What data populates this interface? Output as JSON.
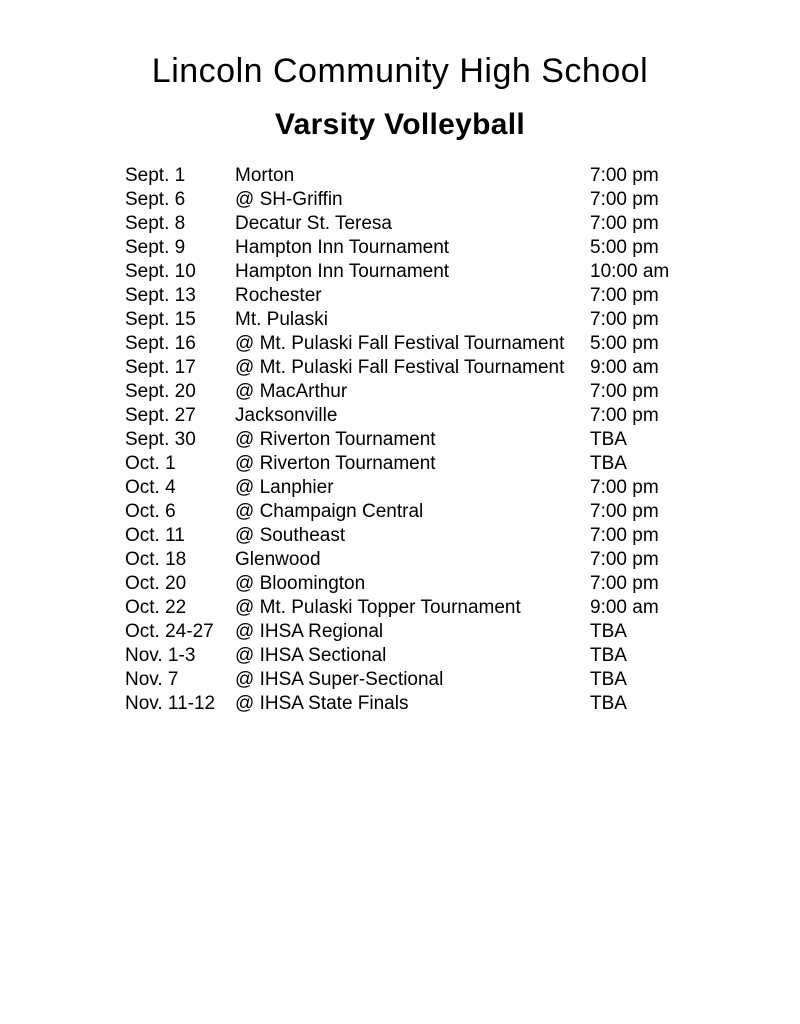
{
  "document": {
    "title": "Lincoln Community High School",
    "subtitle": "Varsity Volleyball"
  },
  "colors": {
    "text": "#000000",
    "background": "#ffffff"
  },
  "schedule": {
    "rows": [
      {
        "date": "Sept. 1",
        "opponent": "Morton",
        "time": "7:00 pm"
      },
      {
        "date": "Sept. 6",
        "opponent": "@ SH-Griffin",
        "time": "7:00 pm"
      },
      {
        "date": "Sept. 8",
        "opponent": "Decatur St. Teresa",
        "time": "7:00 pm"
      },
      {
        "date": "Sept. 9",
        "opponent": "Hampton Inn Tournament",
        "time": "5:00 pm"
      },
      {
        "date": "Sept. 10",
        "opponent": "Hampton Inn Tournament",
        "time": "10:00 am"
      },
      {
        "date": "Sept. 13",
        "opponent": "Rochester",
        "time": "7:00 pm"
      },
      {
        "date": "Sept. 15",
        "opponent": "Mt. Pulaski",
        "time": "7:00 pm"
      },
      {
        "date": "Sept. 16",
        "opponent": "@ Mt. Pulaski Fall Festival Tournament",
        "time": "5:00 pm"
      },
      {
        "date": "Sept. 17",
        "opponent": "@ Mt. Pulaski Fall Festival Tournament",
        "time": "9:00 am"
      },
      {
        "date": "Sept. 20",
        "opponent": "@ MacArthur",
        "time": "7:00 pm"
      },
      {
        "date": "Sept. 27",
        "opponent": "Jacksonville",
        "time": "7:00 pm"
      },
      {
        "date": "Sept. 30",
        "opponent": "@ Riverton Tournament",
        "time": "TBA"
      },
      {
        "date": "Oct. 1",
        "opponent": "@ Riverton Tournament",
        "time": "TBA"
      },
      {
        "date": "Oct. 4",
        "opponent": "@ Lanphier",
        "time": "7:00 pm"
      },
      {
        "date": "Oct. 6",
        "opponent": "@ Champaign Central",
        "time": "7:00 pm"
      },
      {
        "date": "Oct. 11",
        "opponent": "@ Southeast",
        "time": "7:00 pm"
      },
      {
        "date": "Oct. 18",
        "opponent": "Glenwood",
        "time": "7:00 pm"
      },
      {
        "date": "Oct. 20",
        "opponent": "@ Bloomington",
        "time": "7:00 pm"
      },
      {
        "date": "Oct. 22",
        "opponent": "@ Mt. Pulaski Topper Tournament",
        "time": "9:00 am"
      },
      {
        "date": "Oct. 24-27",
        "opponent": "@ IHSA Regional",
        "time": "TBA"
      },
      {
        "date": "Nov. 1-3",
        "opponent": "@ IHSA Sectional",
        "time": "TBA"
      },
      {
        "date": "Nov. 7",
        "opponent": "@ IHSA Super-Sectional",
        "time": "TBA"
      },
      {
        "date": "Nov. 11-12",
        "opponent": "@ IHSA State Finals",
        "time": "TBA"
      }
    ]
  }
}
